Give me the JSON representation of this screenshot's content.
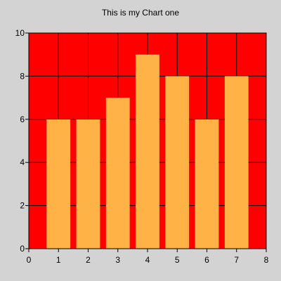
{
  "chart_data": {
    "type": "bar",
    "title": "This is my Chart one",
    "xlabel": "",
    "ylabel": "",
    "x": [
      1,
      2,
      3,
      4,
      5,
      6,
      7
    ],
    "values": [
      6,
      6,
      7,
      9,
      8,
      6,
      8
    ],
    "xlim": [
      0,
      8
    ],
    "ylim": [
      0,
      10
    ],
    "x_ticks": [
      "0",
      "1",
      "2",
      "3",
      "4",
      "5",
      "6",
      "7",
      "8"
    ],
    "y_ticks": [
      "0",
      "2",
      "4",
      "6",
      "8",
      "10"
    ],
    "grid": true,
    "legend": "none",
    "colors": {
      "plot_background": "#ff0000",
      "bar_fill": "#ffb347",
      "figure_background": "#d3d3d3",
      "grid_lines": "#000000"
    }
  }
}
